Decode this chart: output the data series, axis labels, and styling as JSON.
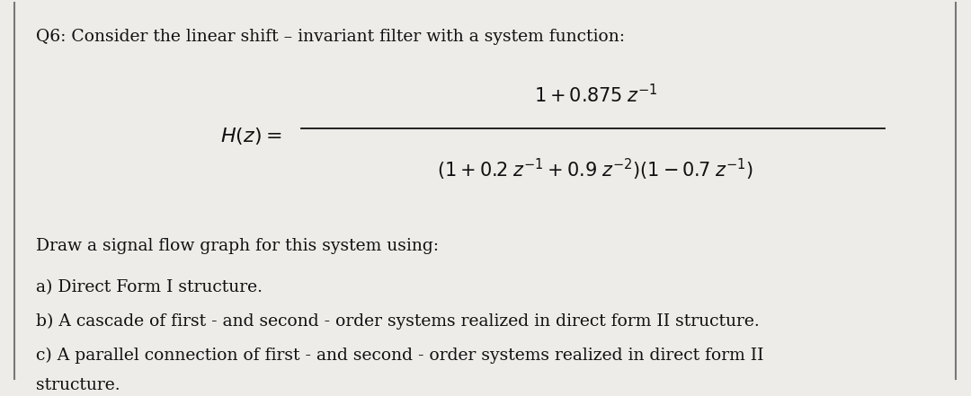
{
  "background_color": "#eeece8",
  "border_color": "#777777",
  "title_text": "Q6: Consider the linear shift – invariant filter with a system function:",
  "draw_text": "Draw a signal flow graph for this system using:",
  "item_a": "a) Direct Form I structure.",
  "item_b": "b) A cascade of first - and second - order systems realized in direct form II structure.",
  "item_c1": "c) A parallel connection of first - and second - order systems realized in direct form II",
  "item_c2": "structure.",
  "text_color": "#111111",
  "title_fontsize": 13.5,
  "body_fontsize": 13.5,
  "math_fontsize": 15,
  "fig_width": 10.8,
  "fig_height": 4.41,
  "dpi": 100
}
